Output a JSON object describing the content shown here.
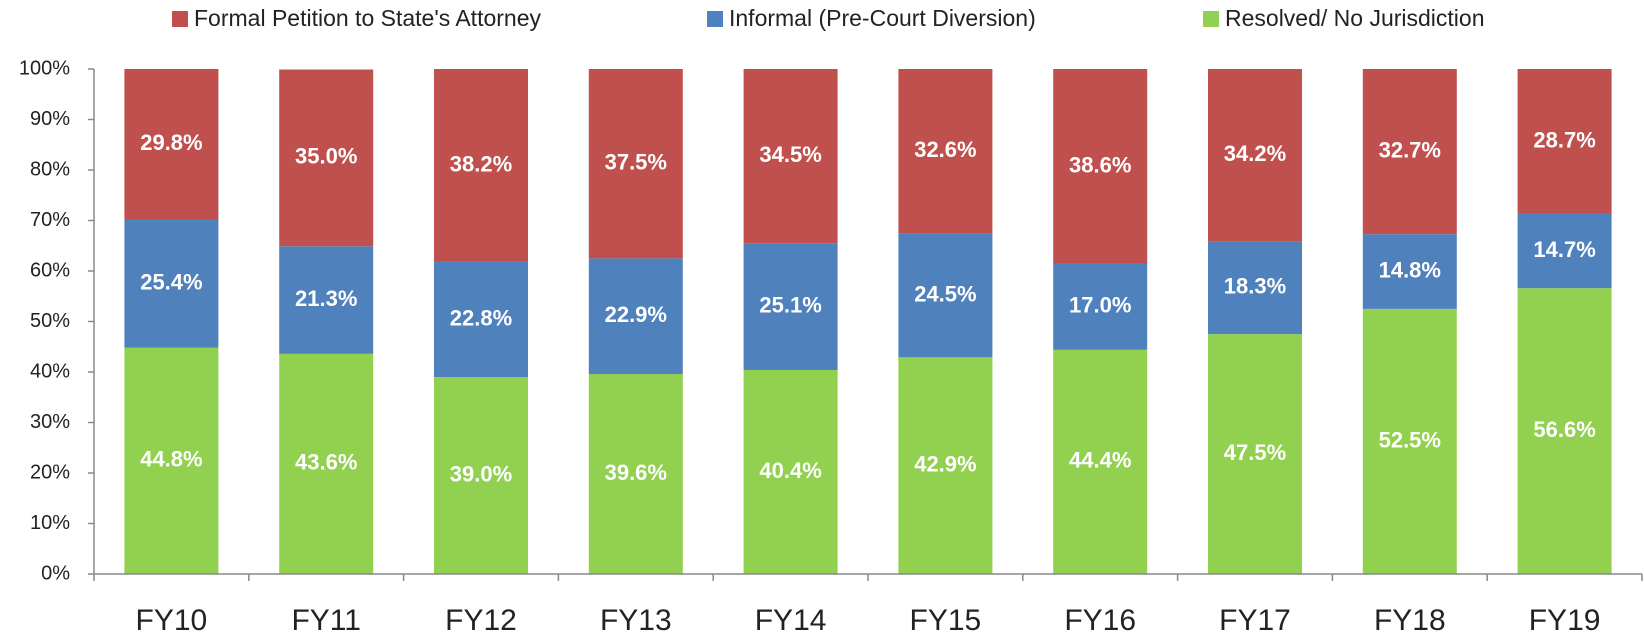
{
  "chart_data": {
    "type": "stacked_bar",
    "categories": [
      "FY10",
      "FY11",
      "FY12",
      "FY13",
      "FY14",
      "FY15",
      "FY16",
      "FY17",
      "FY18",
      "FY19"
    ],
    "series": [
      {
        "name": "Formal Petition to State's Attorney",
        "color": "#c0504d",
        "values": [
          29.8,
          35.0,
          38.2,
          37.5,
          34.5,
          32.6,
          38.6,
          34.2,
          32.7,
          28.7
        ],
        "value_labels": [
          "29.8%",
          "35.0%",
          "38.2%",
          "37.5%",
          "34.5%",
          "32.6%",
          "38.6%",
          "34.2%",
          "32.7%",
          "28.7%"
        ]
      },
      {
        "name": "Informal (Pre-Court Diversion)",
        "color": "#4f81bd",
        "values": [
          25.4,
          21.3,
          22.8,
          22.9,
          25.1,
          24.5,
          17.0,
          18.3,
          14.8,
          14.7
        ],
        "value_labels": [
          "25.4%",
          "21.3%",
          "22.8%",
          "22.9%",
          "25.1%",
          "24.5%",
          "17.0%",
          "18.3%",
          "14.8%",
          "14.7%"
        ]
      },
      {
        "name": "Resolved/ No Jurisdiction",
        "color": "#92d050",
        "values": [
          44.8,
          43.6,
          39.0,
          39.6,
          40.4,
          42.9,
          44.4,
          47.5,
          52.5,
          56.6
        ],
        "value_labels": [
          "44.8%",
          "43.6%",
          "39.0%",
          "39.6%",
          "40.4%",
          "42.9%",
          "44.4%",
          "47.5%",
          "52.5%",
          "56.6%"
        ]
      }
    ],
    "ylim": [
      0,
      100
    ],
    "yticks": [
      {
        "value": 0,
        "label": "0%"
      },
      {
        "value": 10,
        "label": "10%"
      },
      {
        "value": 20,
        "label": "20%"
      },
      {
        "value": 30,
        "label": "30%"
      },
      {
        "value": 40,
        "label": "40%"
      },
      {
        "value": 50,
        "label": "50%"
      },
      {
        "value": 60,
        "label": "60%"
      },
      {
        "value": 70,
        "label": "70%"
      },
      {
        "value": 80,
        "label": "80%"
      },
      {
        "value": 90,
        "label": "90%"
      },
      {
        "value": 100,
        "label": "100%"
      }
    ],
    "legend": "top"
  }
}
